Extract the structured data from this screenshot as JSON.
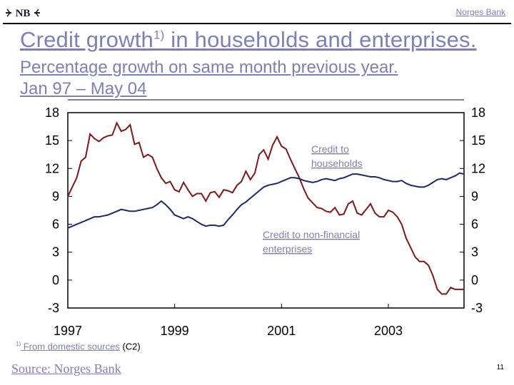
{
  "header": {
    "brand": "Norges Bank",
    "logo_text": "NB",
    "title": "Credit growth",
    "title_sup": "1)",
    "title_rest": " in households and enterprises.",
    "subtitle_line1": "Percentage growth on same month previous year.",
    "subtitle_line2": "Jan 97 – May 04"
  },
  "footer": {
    "footnote_mark": "1)",
    "footnote_text": " From domestic sources",
    "footnote_code": " (C2)",
    "source": "Source: Norges Bank",
    "page_number": "11"
  },
  "colors": {
    "households": "#1a2a6c",
    "enterprises": "#7a1a1a",
    "link_text": "#7f7fb4"
  },
  "chart_data": {
    "type": "line",
    "title": "Credit growth in households and enterprises",
    "xlabel": "",
    "ylabel": "Percentage growth on same month previous year",
    "ylim": [
      -3,
      18
    ],
    "y_ticks": [
      "18",
      "15",
      "12",
      "9",
      "6",
      "3",
      "0",
      "-3"
    ],
    "y_tick_values": [
      18,
      15,
      12,
      9,
      6,
      3,
      0,
      -3
    ],
    "x_ticks": [
      "1997",
      "1999",
      "2001",
      "2003"
    ],
    "x_tick_months": [
      0,
      24,
      48,
      72
    ],
    "x_range_months": [
      0,
      89
    ],
    "series": [
      {
        "name": "Credit to households",
        "label_line1": "Credit to",
        "label_line2": "households",
        "months": [
          0,
          1,
          2,
          3,
          4,
          5,
          6,
          7,
          8,
          9,
          10,
          11,
          12,
          13,
          14,
          15,
          16,
          17,
          18,
          19,
          20,
          21,
          22,
          23,
          24,
          25,
          26,
          27,
          28,
          29,
          30,
          31,
          32,
          33,
          34,
          35,
          36,
          37,
          38,
          39,
          40,
          41,
          42,
          43,
          44,
          45,
          46,
          47,
          48,
          49,
          50,
          51,
          52,
          53,
          54,
          55,
          56,
          57,
          58,
          59,
          60,
          61,
          62,
          63,
          64,
          65,
          66,
          67,
          68,
          69,
          70,
          71,
          72,
          73,
          74,
          75,
          76,
          77,
          78,
          79,
          80,
          81,
          82,
          83,
          84,
          85,
          86,
          87,
          88,
          89
        ],
        "values": [
          5.6,
          5.8,
          6.0,
          6.2,
          6.4,
          6.6,
          6.8,
          6.8,
          6.9,
          7.0,
          7.2,
          7.4,
          7.6,
          7.5,
          7.4,
          7.4,
          7.5,
          7.6,
          7.7,
          7.8,
          8.1,
          8.5,
          8.1,
          7.6,
          7.0,
          6.8,
          6.6,
          6.8,
          6.6,
          6.3,
          6.0,
          5.8,
          5.9,
          5.9,
          5.8,
          5.9,
          6.5,
          7.0,
          7.6,
          8.1,
          8.4,
          8.8,
          9.2,
          9.6,
          10.0,
          10.2,
          10.3,
          10.4,
          10.6,
          10.8,
          11.0,
          11.0,
          10.9,
          10.7,
          10.6,
          10.5,
          10.6,
          10.8,
          10.9,
          10.8,
          10.7,
          10.9,
          11.0,
          11.2,
          11.4,
          11.4,
          11.3,
          11.2,
          11.1,
          11.1,
          11.0,
          10.8,
          10.7,
          10.6,
          10.6,
          10.7,
          10.4,
          10.2,
          10.1,
          10.0,
          10.0,
          10.2,
          10.5,
          10.8,
          10.9,
          10.8,
          11.0,
          11.2,
          11.5,
          11.4
        ]
      },
      {
        "name": "Credit to non-financial enterprises",
        "label_line1": "Credit to non-financial",
        "label_line2": "enterprises",
        "months": [
          0,
          1,
          2,
          3,
          4,
          5,
          6,
          7,
          8,
          9,
          10,
          11,
          12,
          13,
          14,
          15,
          16,
          17,
          18,
          19,
          20,
          21,
          22,
          23,
          24,
          25,
          26,
          27,
          28,
          29,
          30,
          31,
          32,
          33,
          34,
          35,
          36,
          37,
          38,
          39,
          40,
          41,
          42,
          43,
          44,
          45,
          46,
          47,
          48,
          49,
          50,
          51,
          52,
          53,
          54,
          55,
          56,
          57,
          58,
          59,
          60,
          61,
          62,
          63,
          64,
          65,
          66,
          67,
          68,
          69,
          70,
          71,
          72,
          73,
          74,
          75,
          76,
          77,
          78,
          79,
          80,
          81,
          82,
          83,
          84,
          85,
          86,
          87,
          88,
          89
        ],
        "values": [
          9.0,
          10.0,
          11.0,
          12.8,
          13.2,
          15.7,
          15.2,
          14.9,
          15.3,
          15.5,
          15.6,
          16.9,
          16.0,
          16.2,
          16.7,
          14.6,
          14.8,
          13.2,
          13.5,
          13.2,
          12.0,
          11.0,
          10.4,
          10.6,
          9.7,
          9.5,
          10.5,
          9.7,
          9.0,
          9.3,
          9.3,
          8.5,
          9.4,
          9.5,
          8.9,
          9.7,
          9.6,
          9.4,
          10.2,
          10.6,
          11.7,
          10.8,
          11.5,
          13.5,
          14.0,
          13.0,
          14.5,
          15.4,
          14.4,
          14.1,
          13.0,
          12.0,
          11.0,
          9.8,
          8.8,
          8.3,
          7.8,
          7.7,
          7.4,
          7.3,
          7.8,
          7.0,
          7.1,
          8.2,
          8.5,
          7.2,
          7.0,
          7.6,
          8.2,
          7.2,
          6.8,
          6.8,
          7.5,
          7.3,
          6.8,
          6.0,
          4.5,
          3.5,
          2.5,
          2.0,
          2.0,
          1.6,
          0.5,
          -1.0,
          -1.5,
          -1.5,
          -0.8,
          -1.0,
          -1.0,
          -1.0
        ]
      }
    ]
  }
}
